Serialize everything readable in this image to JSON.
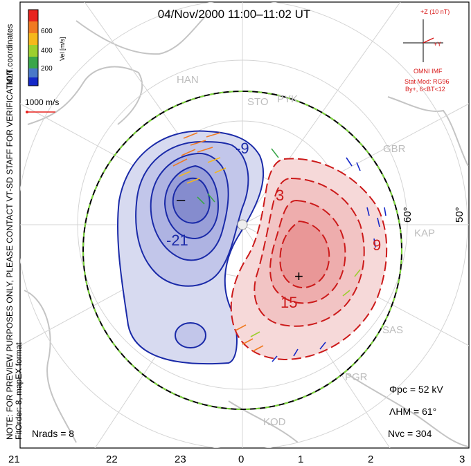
{
  "title": "04/Nov/2000 11:00–11:02 UT",
  "colorbar": {
    "label": "Vel [m/s]",
    "ticks": [
      "600",
      "400",
      "200"
    ],
    "colors": [
      "#e8231e",
      "#f07a22",
      "#f5b81c",
      "#9ccf2e",
      "#3aa64a",
      "#4a78c8",
      "#1428c8"
    ]
  },
  "coordinate_note": "MLT coordinates",
  "scale_vector_label": "1000 m/s",
  "side_note": "NOTE: FOR PREVIEW PURPOSES ONLY, PLEASE CONTACT VT-SD STAFF FOR VERIFICATION.",
  "fit_order_note": "FitOrder: 8, mapEX format",
  "imf": {
    "z_label": "+Z (10 nT)",
    "y_label": "+Y",
    "source": "OMNI IMF",
    "model_line1": "Stat Mod: RG96",
    "model_line2": "By+, 6<BT<12"
  },
  "radars": [
    "HAN",
    "STO",
    "PYK",
    "GBR",
    "KAP",
    "SAS",
    "PGR",
    "KOD"
  ],
  "latitude_labels": [
    "60°",
    "50°"
  ],
  "contour_labels": [
    "-9",
    "-21",
    "3",
    "9",
    "15"
  ],
  "center_markers": [
    "–",
    "+"
  ],
  "stats": {
    "phi_pc": "Φpc = 52 kV",
    "lambda_hm": "ΛHM = 61°",
    "n_vc": "Nvc = 304",
    "n_rads": "Nrads = 8"
  },
  "mlt_axis": [
    "21",
    "22",
    "23",
    "0",
    "1",
    "2",
    "3"
  ],
  "colors": {
    "negative_cell": "#1a2aa8",
    "positive_cell": "#cc1a1a",
    "land": "#c9c9c9",
    "grid": "#cfcfcf",
    "imf_red": "#d81818"
  }
}
